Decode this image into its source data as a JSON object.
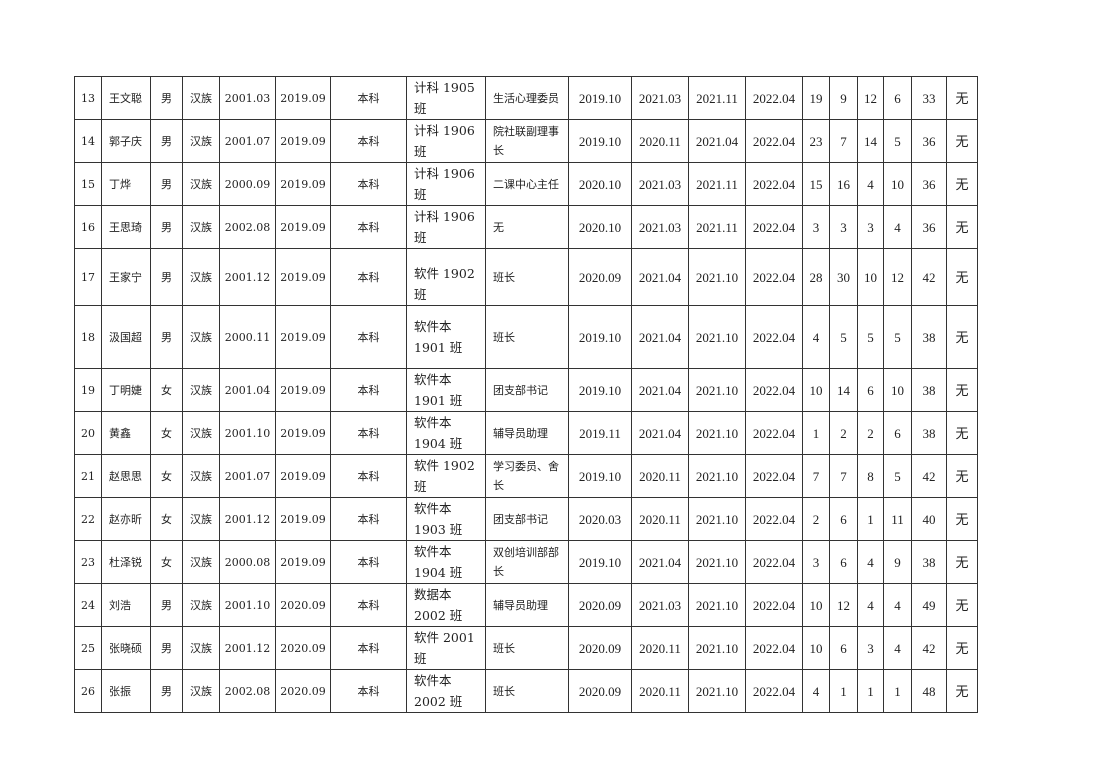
{
  "rows": [
    {
      "no": "13",
      "name": "王文聪",
      "gender": "男",
      "ethnicity": "汉族",
      "birth": "2001.03",
      "enroll": "2019.09",
      "level": "本科",
      "class": "计科 1905 班",
      "position": "生活心理委员",
      "d1": "2019.10",
      "d2": "2021.03",
      "d3": "2021.11",
      "d4": "2022.04",
      "s1": "19",
      "s2": "9",
      "s3": "12",
      "s4": "6",
      "total": "33",
      "note": "无"
    },
    {
      "no": "14",
      "name": "郭子庆",
      "gender": "男",
      "ethnicity": "汉族",
      "birth": "2001.07",
      "enroll": "2019.09",
      "level": "本科",
      "class": "计科 1906 班",
      "position": "院社联副理事长",
      "d1": "2019.10",
      "d2": "2020.11",
      "d3": "2021.04",
      "d4": "2022.04",
      "s1": "23",
      "s2": "7",
      "s3": "14",
      "s4": "5",
      "total": "36",
      "note": "无"
    },
    {
      "no": "15",
      "name": "丁烨",
      "gender": "男",
      "ethnicity": "汉族",
      "birth": "2000.09",
      "enroll": "2019.09",
      "level": "本科",
      "class": "计科 1906 班",
      "position": "二课中心主任",
      "d1": "2020.10",
      "d2": "2021.03",
      "d3": "2021.11",
      "d4": "2022.04",
      "s1": "15",
      "s2": "16",
      "s3": "4",
      "s4": "10",
      "total": "36",
      "note": "无"
    },
    {
      "no": "16",
      "name": "王思琦",
      "gender": "男",
      "ethnicity": "汉族",
      "birth": "2002.08",
      "enroll": "2019.09",
      "level": "本科",
      "class": "计科 1906 班",
      "position": "无",
      "d1": "2020.10",
      "d2": "2021.03",
      "d3": "2021.11",
      "d4": "2022.04",
      "s1": "3",
      "s2": "3",
      "s3": "3",
      "s4": "4",
      "total": "36",
      "note": "无"
    },
    {
      "no": "17",
      "name": "王家宁",
      "gender": "男",
      "ethnicity": "汉族",
      "birth": "2001.12",
      "enroll": "2019.09",
      "level": "本科",
      "class": "软件 1902 班",
      "position": "班长",
      "d1": "2020.09",
      "d2": "2021.04",
      "d3": "2021.10",
      "d4": "2022.04",
      "s1": "28",
      "s2": "30",
      "s3": "10",
      "s4": "12",
      "total": "42",
      "note": "无"
    },
    {
      "no": "18",
      "name": "汲国超",
      "gender": "男",
      "ethnicity": "汉族",
      "birth": "2000.11",
      "enroll": "2019.09",
      "level": "本科",
      "class": "软件本 1901 班",
      "position": "班长",
      "d1": "2019.10",
      "d2": "2021.04",
      "d3": "2021.10",
      "d4": "2022.04",
      "s1": "4",
      "s2": "5",
      "s3": "5",
      "s4": "5",
      "total": "38",
      "note": "无"
    },
    {
      "no": "19",
      "name": "丁明婕",
      "gender": "女",
      "ethnicity": "汉族",
      "birth": "2001.04",
      "enroll": "2019.09",
      "level": "本科",
      "class": "软件本 1901 班",
      "position": "团支部书记",
      "d1": "2019.10",
      "d2": "2021.04",
      "d3": "2021.10",
      "d4": "2022.04",
      "s1": "10",
      "s2": "14",
      "s3": "6",
      "s4": "10",
      "total": "38",
      "note": "无"
    },
    {
      "no": "20",
      "name": "黄鑫",
      "gender": "女",
      "ethnicity": "汉族",
      "birth": "2001.10",
      "enroll": "2019.09",
      "level": "本科",
      "class": "软件本 1904 班",
      "position": "辅导员助理",
      "d1": "2019.11",
      "d2": "2021.04",
      "d3": "2021.10",
      "d4": "2022.04",
      "s1": "1",
      "s2": "2",
      "s3": "2",
      "s4": "6",
      "total": "38",
      "note": "无"
    },
    {
      "no": "21",
      "name": "赵思思",
      "gender": "女",
      "ethnicity": "汉族",
      "birth": "2001.07",
      "enroll": "2019.09",
      "level": "本科",
      "class": "软件 1902 班",
      "position": "学习委员、舍长",
      "d1": "2019.10",
      "d2": "2020.11",
      "d3": "2021.10",
      "d4": "2022.04",
      "s1": "7",
      "s2": "7",
      "s3": "8",
      "s4": "5",
      "total": "42",
      "note": "无"
    },
    {
      "no": "22",
      "name": "赵亦昕",
      "gender": "女",
      "ethnicity": "汉族",
      "birth": "2001.12",
      "enroll": "2019.09",
      "level": "本科",
      "class": "软件本 1903 班",
      "position": "团支部书记",
      "d1": "2020.03",
      "d2": "2020.11",
      "d3": "2021.10",
      "d4": "2022.04",
      "s1": "2",
      "s2": "6",
      "s3": "1",
      "s4": "11",
      "total": "40",
      "note": "无"
    },
    {
      "no": "23",
      "name": "杜泽锐",
      "gender": "女",
      "ethnicity": "汉族",
      "birth": "2000.08",
      "enroll": "2019.09",
      "level": "本科",
      "class": "软件本 1904 班",
      "position": "双创培训部部长",
      "d1": "2019.10",
      "d2": "2021.04",
      "d3": "2021.10",
      "d4": "2022.04",
      "s1": "3",
      "s2": "6",
      "s3": "4",
      "s4": "9",
      "total": "38",
      "note": "无"
    },
    {
      "no": "24",
      "name": "刘浩",
      "gender": "男",
      "ethnicity": "汉族",
      "birth": "2001.10",
      "enroll": "2020.09",
      "level": "本科",
      "class": "数据本 2002 班",
      "position": "辅导员助理",
      "d1": "2020.09",
      "d2": "2021.03",
      "d3": "2021.10",
      "d4": "2022.04",
      "s1": "10",
      "s2": "12",
      "s3": "4",
      "s4": "4",
      "total": "49",
      "note": "无"
    },
    {
      "no": "25",
      "name": "张晓硕",
      "gender": "男",
      "ethnicity": "汉族",
      "birth": "2001.12",
      "enroll": "2020.09",
      "level": "本科",
      "class": "软件 2001 班",
      "position": "班长",
      "d1": "2020.09",
      "d2": "2020.11",
      "d3": "2021.10",
      "d4": "2022.04",
      "s1": "10",
      "s2": "6",
      "s3": "3",
      "s4": "4",
      "total": "42",
      "note": "无"
    },
    {
      "no": "26",
      "name": "张振",
      "gender": "男",
      "ethnicity": "汉族",
      "birth": "2002.08",
      "enroll": "2020.09",
      "level": "本科",
      "class": "软件本 2002 班",
      "position": "班长",
      "d1": "2020.09",
      "d2": "2020.11",
      "d3": "2021.10",
      "d4": "2022.04",
      "s1": "4",
      "s2": "1",
      "s3": "1",
      "s4": "1",
      "total": "48",
      "note": "无"
    }
  ]
}
